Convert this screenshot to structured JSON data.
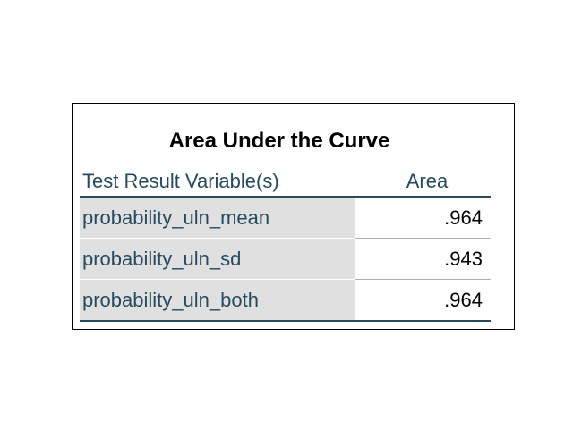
{
  "table": {
    "title": "Area Under the Curve",
    "headers": {
      "variable": "Test Result Variable(s)",
      "area": "Area"
    },
    "rows": [
      {
        "variable": "probability_uln_mean",
        "area": ".964"
      },
      {
        "variable": "probability_uln_sd",
        "area": ".943"
      },
      {
        "variable": "probability_uln_both",
        "area": ".964"
      }
    ]
  },
  "colors": {
    "header_text": "#264a60",
    "label_cell_bg": "#e0e0e0",
    "rule": "#264a60"
  }
}
